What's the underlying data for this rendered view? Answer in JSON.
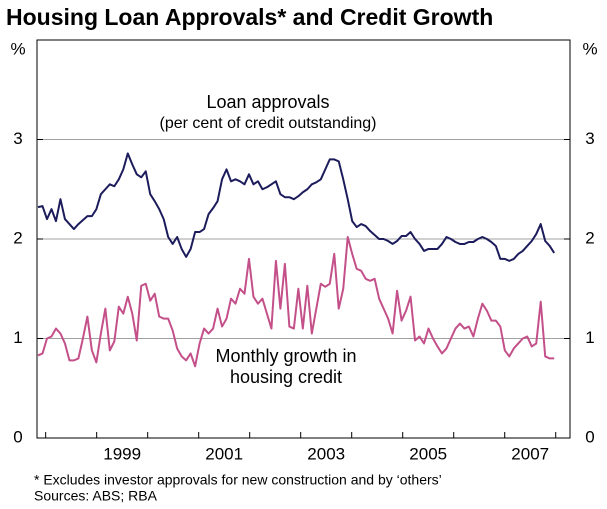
{
  "chart_data": {
    "type": "line",
    "title": "Housing Loan Approvals* and Credit Growth",
    "ylabel": "%",
    "y2label": "%",
    "footnote": "*    Excludes investor approvals for new construction and by ‘others’",
    "source": "Sources: ABS; RBA",
    "xlim": [
      1997.83,
      2008.28
    ],
    "xticks": [
      {
        "value": 1999.5,
        "label": "1999"
      },
      {
        "value": 2001.5,
        "label": "2001"
      },
      {
        "value": 2003.5,
        "label": "2003"
      },
      {
        "value": 2005.5,
        "label": "2005"
      },
      {
        "value": 2007.5,
        "label": "2007"
      }
    ],
    "xminor": [
      1998,
      1999,
      2000,
      2001,
      2002,
      2003,
      2004,
      2005,
      2006,
      2007,
      2008
    ],
    "ylim": [
      0,
      4
    ],
    "yticks": [
      0,
      1,
      2,
      3
    ],
    "y2lim": [
      0,
      4
    ],
    "y2ticks": [
      0,
      1,
      2,
      3
    ],
    "grid": true,
    "x": [
      1997.85,
      1997.938,
      1998.026,
      1998.114,
      1998.202,
      1998.29,
      1998.378,
      1998.466,
      1998.554,
      1998.642,
      1998.73,
      1998.818,
      1998.906,
      1998.994,
      1999.082,
      1999.17,
      1999.258,
      1999.346,
      1999.434,
      1999.522,
      1999.61,
      1999.698,
      1999.786,
      1999.874,
      1999.962,
      2000.05,
      2000.138,
      2000.226,
      2000.314,
      2000.402,
      2000.49,
      2000.578,
      2000.666,
      2000.754,
      2000.842,
      2000.93,
      2001.018,
      2001.106,
      2001.194,
      2001.282,
      2001.37,
      2001.458,
      2001.546,
      2001.634,
      2001.722,
      2001.81,
      2001.898,
      2001.986,
      2002.074,
      2002.162,
      2002.25,
      2002.338,
      2002.426,
      2002.514,
      2002.602,
      2002.69,
      2002.778,
      2002.866,
      2002.954,
      2003.042,
      2003.13,
      2003.218,
      2003.306,
      2003.394,
      2003.482,
      2003.57,
      2003.658,
      2003.746,
      2003.834,
      2003.922,
      2004.01,
      2004.098,
      2004.186,
      2004.274,
      2004.362,
      2004.45,
      2004.538,
      2004.626,
      2004.714,
      2004.802,
      2004.89,
      2004.978,
      2005.066,
      2005.154,
      2005.242,
      2005.33,
      2005.418,
      2005.506,
      2005.594,
      2005.682,
      2005.77,
      2005.858,
      2005.946,
      2006.034,
      2006.122,
      2006.21,
      2006.298,
      2006.386,
      2006.474,
      2006.562,
      2006.65,
      2006.738,
      2006.826,
      2006.914,
      2007.002,
      2007.09,
      2007.178,
      2007.266,
      2007.354,
      2007.442,
      2007.53,
      2007.618,
      2007.706,
      2007.794,
      2007.882,
      2007.97
    ],
    "series": [
      {
        "label_lines": [
          "Loan approvals",
          "(per cent of credit outstanding)"
        ],
        "color": "#1c1c5c",
        "values": [
          2.32,
          2.33,
          2.2,
          2.3,
          2.18,
          2.4,
          2.2,
          2.15,
          2.1,
          2.15,
          2.19,
          2.23,
          2.23,
          2.3,
          2.45,
          2.5,
          2.55,
          2.53,
          2.6,
          2.7,
          2.86,
          2.75,
          2.65,
          2.62,
          2.68,
          2.45,
          2.38,
          2.3,
          2.2,
          2.02,
          1.95,
          2.02,
          1.9,
          1.82,
          1.9,
          2.07,
          2.07,
          2.1,
          2.25,
          2.31,
          2.38,
          2.6,
          2.7,
          2.58,
          2.6,
          2.58,
          2.55,
          2.65,
          2.55,
          2.58,
          2.5,
          2.52,
          2.55,
          2.58,
          2.45,
          2.42,
          2.42,
          2.4,
          2.43,
          2.47,
          2.5,
          2.55,
          2.57,
          2.6,
          2.7,
          2.8,
          2.8,
          2.78,
          2.6,
          2.4,
          2.18,
          2.12,
          2.15,
          2.13,
          2.08,
          2.04,
          2.0,
          2.0,
          1.98,
          1.95,
          1.98,
          2.03,
          2.03,
          2.07,
          2.0,
          1.95,
          1.88,
          1.9,
          1.9,
          1.9,
          1.95,
          2.02,
          2.0,
          1.97,
          1.95,
          1.95,
          1.97,
          1.97,
          2.0,
          2.02,
          2.0,
          1.97,
          1.93,
          1.8,
          1.8,
          1.78,
          1.8,
          1.85,
          1.88,
          1.93,
          1.98,
          2.05,
          2.15,
          1.98,
          1.93,
          1.86
        ]
      },
      {
        "label_lines": [
          "Monthly growth in",
          "housing credit"
        ],
        "color": "#c4508a",
        "values": [
          0.83,
          0.85,
          1.0,
          1.02,
          1.1,
          1.05,
          0.95,
          0.78,
          0.78,
          0.8,
          1.0,
          1.22,
          0.88,
          0.76,
          1.05,
          1.3,
          0.88,
          0.97,
          1.32,
          1.25,
          1.42,
          1.25,
          0.98,
          1.53,
          1.55,
          1.38,
          1.45,
          1.22,
          1.2,
          1.2,
          1.08,
          0.9,
          0.82,
          0.78,
          0.85,
          0.72,
          0.95,
          1.1,
          1.05,
          1.1,
          1.3,
          1.12,
          1.2,
          1.4,
          1.35,
          1.5,
          1.45,
          1.8,
          1.42,
          1.35,
          1.4,
          1.25,
          1.1,
          1.78,
          1.3,
          1.75,
          1.12,
          1.1,
          1.5,
          1.1,
          1.53,
          1.05,
          1.3,
          1.55,
          1.52,
          1.55,
          1.85,
          1.3,
          1.5,
          2.02,
          1.85,
          1.7,
          1.68,
          1.6,
          1.58,
          1.6,
          1.4,
          1.3,
          1.2,
          1.05,
          1.48,
          1.18,
          1.28,
          1.42,
          0.98,
          1.02,
          0.95,
          1.1,
          1.0,
          0.92,
          0.85,
          0.9,
          1.0,
          1.1,
          1.15,
          1.1,
          1.12,
          1.02,
          1.2,
          1.35,
          1.28,
          1.18,
          1.18,
          1.12,
          0.88,
          0.82,
          0.9,
          0.95,
          1.0,
          1.02,
          0.92,
          0.95,
          1.37,
          0.82,
          0.8,
          0.8
        ]
      }
    ]
  }
}
